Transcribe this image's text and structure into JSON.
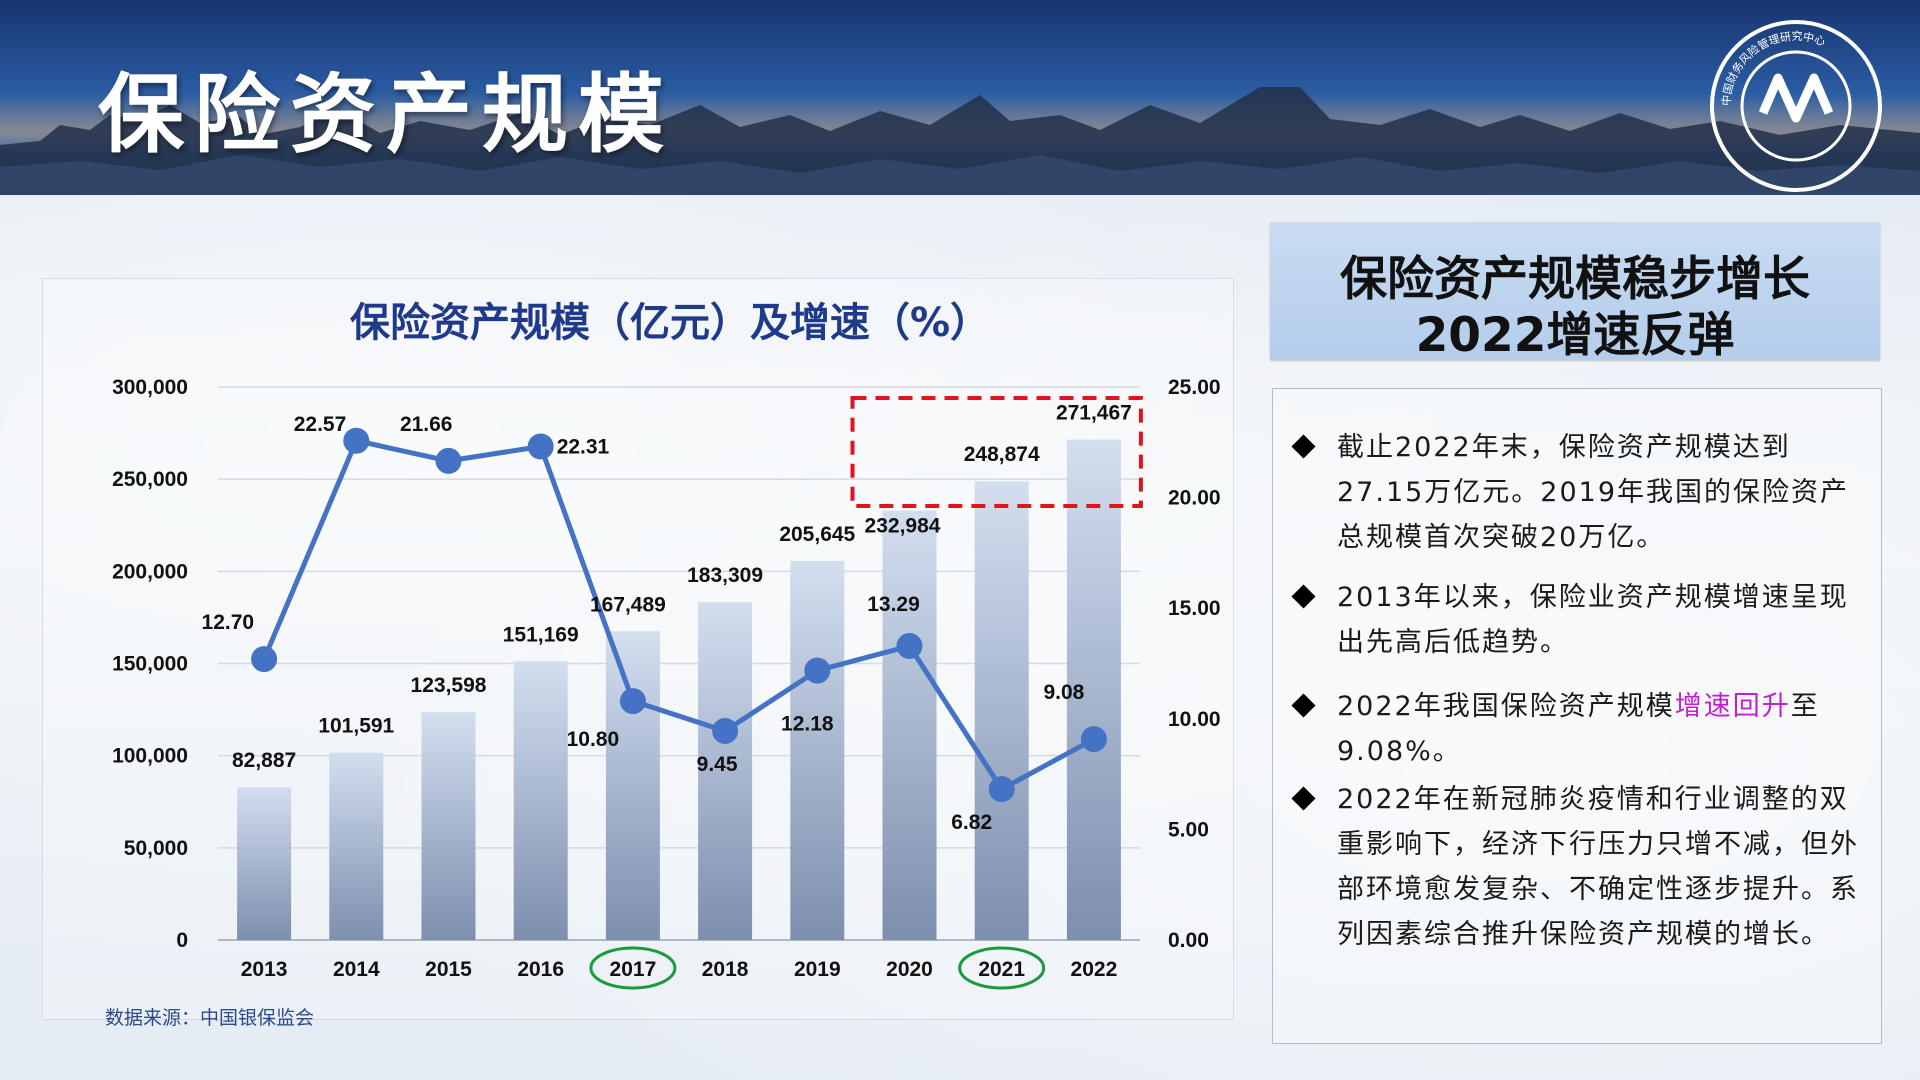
{
  "slide": {
    "title": "保险资产规模",
    "logo_label": "中国财务风险管理研究中心"
  },
  "chart_data": {
    "type": "bar",
    "title": "保险资产规模（亿元）及增速（%）",
    "categories": [
      "2013",
      "2014",
      "2015",
      "2016",
      "2017",
      "2018",
      "2019",
      "2020",
      "2021",
      "2022"
    ],
    "series": [
      {
        "type": "bar",
        "axis": "left",
        "values": [
          82887,
          101591,
          123598,
          151169,
          167489,
          183309,
          205645,
          232984,
          248874,
          271467
        ],
        "labels": [
          "82,887",
          "101,591",
          "123,598",
          "151,169",
          "167,489",
          "183,309",
          "205,645",
          "232,984",
          "248,874",
          "271,467"
        ]
      },
      {
        "type": "line",
        "axis": "right",
        "values": [
          12.7,
          22.57,
          21.66,
          22.31,
          10.8,
          9.45,
          12.18,
          13.29,
          6.82,
          9.08
        ],
        "labels": [
          "12.70",
          "22.57",
          "21.66",
          "22.31",
          "10.80",
          "9.45",
          "12.18",
          "13.29",
          "6.82",
          "9.08"
        ]
      }
    ],
    "y_left": {
      "min": 0,
      "max": 300000,
      "ticks": [
        "0",
        "50,000",
        "100,000",
        "150,000",
        "200,000",
        "250,000",
        "300,000"
      ]
    },
    "y_right": {
      "min": 0,
      "max": 25,
      "ticks": [
        "0.00",
        "5.00",
        "10.00",
        "15.00",
        "20.00",
        "25.00"
      ]
    },
    "grid": true,
    "highlighted_categories": [
      "2017",
      "2021"
    ],
    "colors": {
      "bar_top": "#c9d6ea",
      "bar_bottom": "#7f91b1",
      "line": "#4472c4",
      "axis_text": "#111111",
      "highlight_circle": "#1a9b3b",
      "highlight_box": "#e0141e"
    },
    "source": "数据来源：中国银保监会"
  },
  "sidebar": {
    "headline_lines": [
      "保险资产规模稳步增长",
      "2022增速反弹"
    ],
    "points": [
      {
        "text": "截止2022年末，保险资产规模达到27.15万亿元。2019年我国的保险资产总规模首次突破20万亿。"
      },
      {
        "text": "2013年以来，保险业资产规模增速呈现出先高后低趋势。"
      },
      {
        "pre": "2022年我国保险资产规模",
        "highlight": "增速回升",
        "post": "至9.08%。"
      },
      {
        "text": "2022年在新冠肺炎疫情和行业调整的双重影响下，经济下行压力只增不减，但外部环境愈发复杂、不确定性逐步提升。系列因素综合推升保险资产规模的增长。"
      }
    ]
  }
}
